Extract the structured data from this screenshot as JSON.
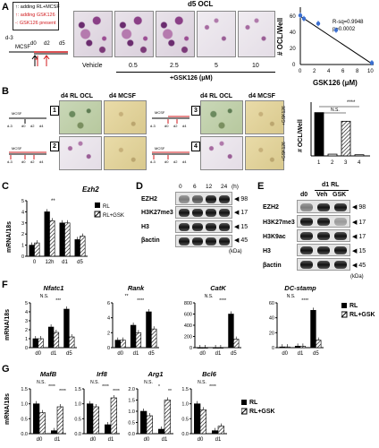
{
  "panelA": {
    "label": "A",
    "legend": [
      ": adding RL+MCSF",
      ": adding GSK126",
      ": GSK126 present"
    ],
    "timeline": {
      "start": "d-3",
      "ticks": [
        "d0",
        "d2",
        "d5"
      ],
      "mcsf": "MCSF"
    },
    "header": "d5 OCL",
    "images": [
      "Vehicle",
      "0.5",
      "2.5",
      "5",
      "10"
    ],
    "treatment": "+GSK126 (μM)",
    "plot": {
      "ylabel": "# OCL/Well",
      "xlabel": "GSK126 (μM)",
      "rsq": "R-sq=0.9948",
      "p": "p=0.0002",
      "yticks": [
        "0",
        "20",
        "40",
        "60"
      ],
      "xticks": [
        "0",
        "2",
        "4",
        "6",
        "8",
        "10"
      ]
    }
  },
  "panelB": {
    "label": "B",
    "header_ocl": "d4 RL OCL",
    "header_mcsf": "d4 MCSF",
    "timeline_labels": [
      "d-3",
      "d0",
      "d2",
      "d4"
    ],
    "mcsf": "MCSF",
    "conditions": [
      "1",
      "2",
      "3",
      "4"
    ],
    "side": "+GSK126",
    "ylabel": "# OCL/Well",
    "ns": "N.S.",
    "sig": "****"
  },
  "panelC": {
    "label": "C",
    "title": "Ezh2",
    "ylabel": "mRNA/18s",
    "legend": [
      "RL",
      "RL+GSK"
    ],
    "sig": "**"
  },
  "panelD": {
    "label": "D",
    "hours": [
      "0",
      "6",
      "12",
      "24"
    ],
    "unit": "(h)",
    "rows": [
      "EZH2",
      "H3K27me3",
      "H3",
      "βactin"
    ],
    "kda": [
      "98",
      "17",
      "15",
      "45"
    ],
    "kda_unit": "(kDa)"
  },
  "panelE": {
    "label": "E",
    "header": "d1 RL",
    "cols": [
      "d0",
      "Veh",
      "GSK"
    ],
    "rows": [
      "EZH2",
      "H3K27me3",
      "H3K9ac",
      "H3",
      "βactin"
    ],
    "kda": [
      "98",
      "17",
      "17",
      "15",
      "45"
    ],
    "kda_unit": "(kDa)"
  },
  "panelF": {
    "label": "F",
    "genes": [
      "Nfatc1",
      "Rank",
      "CatK",
      "DC-stamp"
    ],
    "ylabel": "mRNA/18s",
    "legend": [
      "RL",
      "RL+GSK"
    ],
    "x": [
      "d0",
      "d1",
      "d5"
    ]
  },
  "panelG": {
    "label": "G",
    "genes": [
      "MafB",
      "Irf8",
      "Arg1",
      "Bcl6"
    ],
    "ylabel": "mRNA/18s",
    "legend": [
      "RL",
      "RL+GSK"
    ],
    "x": [
      "d0",
      "d1"
    ]
  },
  "chart_data": [
    {
      "type": "scatter",
      "panel": "A",
      "x": [
        0,
        0.5,
        2.5,
        5,
        10
      ],
      "y": [
        60,
        56,
        50,
        42,
        2
      ],
      "xlabel": "GSK126 (μM)",
      "ylabel": "# OCL/Well",
      "ylim": [
        0,
        70
      ],
      "xlim": [
        0,
        10
      ]
    },
    {
      "type": "bar",
      "panel": "B",
      "categories": [
        "1",
        "2",
        "3",
        "4"
      ],
      "values": [
        1500,
        60,
        1200,
        40
      ],
      "ylabel": "# OCL/Well"
    },
    {
      "type": "bar",
      "panel": "C",
      "title": "Ezh2",
      "categories": [
        "0",
        "12h",
        "d1",
        "d5"
      ],
      "series": [
        {
          "name": "RL",
          "values": [
            1.0,
            4.0,
            3.0,
            1.5
          ]
        },
        {
          "name": "RL+GSK",
          "values": [
            1.2,
            3.2,
            3.0,
            1.8
          ]
        }
      ],
      "ylabel": "mRNA/18s",
      "ylim": [
        0,
        5
      ],
      "yticks": [
        "0",
        "1",
        "2",
        "3",
        "4",
        "5"
      ]
    },
    {
      "type": "bar",
      "panel": "F",
      "title": "Nfatc1",
      "categories": [
        "d0",
        "d1",
        "d5"
      ],
      "series": [
        {
          "name": "RL",
          "values": [
            1.0,
            2.3,
            4.3
          ]
        },
        {
          "name": "RL+GSK",
          "values": [
            1.0,
            1.7,
            1.2
          ]
        }
      ],
      "ylim": [
        0,
        5
      ],
      "yticks": [
        "0",
        "1",
        "2",
        "3",
        "4",
        "5"
      ],
      "sig": [
        "N.S.",
        "***"
      ]
    },
    {
      "type": "bar",
      "panel": "F",
      "title": "Rank",
      "categories": [
        "d0",
        "d1",
        "d5"
      ],
      "series": [
        {
          "name": "RL",
          "values": [
            1.0,
            3.0,
            4.8
          ]
        },
        {
          "name": "RL+GSK",
          "values": [
            1.0,
            2.0,
            2.5
          ]
        }
      ],
      "ylim": [
        0,
        6
      ],
      "yticks": [
        "0",
        "2",
        "4",
        "6"
      ],
      "sig": [
        "**",
        "****"
      ]
    },
    {
      "type": "bar",
      "panel": "F",
      "title": "CatK",
      "categories": [
        "d0",
        "d1",
        "d5"
      ],
      "series": [
        {
          "name": "RL",
          "values": [
            0.02,
            0.05,
            600
          ]
        },
        {
          "name": "RL+GSK",
          "values": [
            0.02,
            0.05,
            150
          ]
        }
      ],
      "ylim": [
        0,
        800
      ],
      "yticks": [
        "0",
        "200",
        "400",
        "600",
        "800"
      ],
      "sig": [
        "N.S.",
        "****"
      ]
    },
    {
      "type": "bar",
      "panel": "F",
      "title": "DC-stamp",
      "categories": [
        "d0",
        "d1",
        "d5"
      ],
      "series": [
        {
          "name": "RL",
          "values": [
            1,
            2,
            50
          ]
        },
        {
          "name": "RL+GSK",
          "values": [
            1,
            2,
            10
          ]
        }
      ],
      "ylim": [
        0,
        60
      ],
      "yticks": [
        "0",
        "20",
        "40",
        "60"
      ],
      "sig": [
        "N.S.",
        "****"
      ]
    },
    {
      "type": "bar",
      "panel": "G",
      "title": "MafB",
      "categories": [
        "d0",
        "d1"
      ],
      "series": [
        {
          "name": "RL",
          "values": [
            1.0,
            0.1
          ]
        },
        {
          "name": "RL+GSK",
          "values": [
            0.7,
            0.9
          ]
        }
      ],
      "ylim": [
        0,
        1.5
      ],
      "yticks": [
        "0.0",
        "0.5",
        "1.0",
        "1.5"
      ],
      "sig": [
        "N.S.",
        "****",
        "****"
      ]
    },
    {
      "type": "bar",
      "panel": "G",
      "title": "Irf8",
      "categories": [
        "d0",
        "d1"
      ],
      "series": [
        {
          "name": "RL",
          "values": [
            1.0,
            0.3
          ]
        },
        {
          "name": "RL+GSK",
          "values": [
            0.9,
            1.2
          ]
        }
      ],
      "ylim": [
        0,
        1.5
      ],
      "yticks": [
        "0.0",
        "0.5",
        "1.0",
        "1.5"
      ],
      "sig": [
        "N.S.",
        "****",
        "****"
      ]
    },
    {
      "type": "bar",
      "panel": "G",
      "title": "Arg1",
      "categories": [
        "d0",
        "d1"
      ],
      "series": [
        {
          "name": "RL",
          "values": [
            1.0,
            0.2
          ]
        },
        {
          "name": "RL+GSK",
          "values": [
            0.8,
            1.5
          ]
        }
      ],
      "ylim": [
        0,
        2.0
      ],
      "yticks": [
        "0.0",
        "0.5",
        "1.0",
        "1.5",
        "2.0"
      ],
      "sig": [
        "N.S.",
        "*",
        "**"
      ]
    },
    {
      "type": "bar",
      "panel": "G",
      "title": "Bcl6",
      "categories": [
        "d0",
        "d1"
      ],
      "series": [
        {
          "name": "RL",
          "values": [
            1.0,
            0.1
          ]
        },
        {
          "name": "RL+GSK",
          "values": [
            0.8,
            0.25
          ]
        }
      ],
      "ylim": [
        0,
        1.5
      ],
      "yticks": [
        "0.0",
        "0.5",
        "1.0",
        "1.5"
      ],
      "sig": [
        "N.S.",
        "****"
      ]
    }
  ]
}
